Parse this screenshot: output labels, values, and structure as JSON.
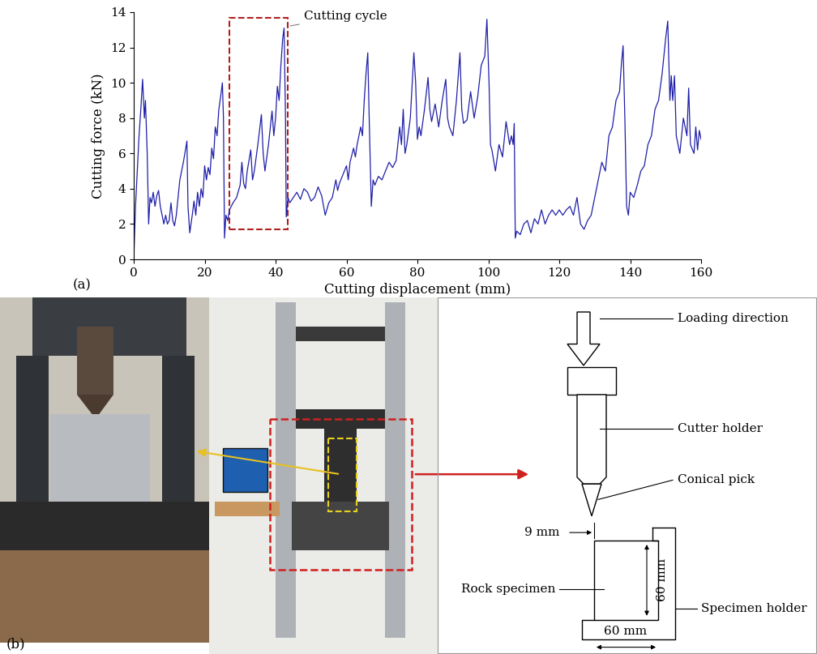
{
  "chart_data": {
    "type": "line",
    "panel_label": "(a)",
    "xlabel": "Cutting displacement (mm)",
    "ylabel": "Cutting force (kN)",
    "xlim": [
      0,
      160
    ],
    "ylim": [
      0,
      14
    ],
    "xticks": [
      0,
      20,
      40,
      60,
      80,
      100,
      120,
      140,
      160
    ],
    "yticks": [
      0,
      2,
      4,
      6,
      8,
      10,
      12,
      14
    ],
    "color": "#1f1fa8",
    "annotations": [
      {
        "text": "Cutting cycle",
        "x": 43.5,
        "y": 13.2,
        "box_x": [
          27,
          43.5
        ],
        "box_y": [
          1.7,
          13.7
        ],
        "color": "#b02020"
      }
    ],
    "x": [
      0,
      0.5,
      1,
      1.5,
      2,
      2.5,
      3,
      3.3,
      3.8,
      4.2,
      4.6,
      5,
      5.5,
      6,
      6.5,
      7,
      7.5,
      8,
      8.5,
      9,
      9.5,
      10,
      10.5,
      11,
      11.5,
      12,
      12.5,
      13,
      14,
      15,
      15.3,
      15.8,
      16.5,
      17,
      17.5,
      18,
      18.5,
      19,
      19.5,
      20,
      20.5,
      21,
      21.5,
      22,
      22.5,
      23,
      23.5,
      24,
      24.5,
      25,
      25.3,
      25.6,
      26,
      26.5,
      27,
      28,
      29,
      30,
      30.5,
      31,
      31.5,
      32,
      33,
      33.5,
      34,
      35,
      36,
      36.5,
      37,
      38,
      39,
      39.5,
      40,
      40.5,
      41,
      41.5,
      42,
      42.4,
      42.8,
      43,
      43.5,
      44,
      45,
      46,
      47,
      48,
      49,
      50,
      51,
      52,
      53,
      54,
      55,
      56,
      57,
      57.5,
      58,
      59,
      60,
      60.5,
      61,
      62,
      62.5,
      63,
      64,
      64.5,
      65,
      65.5,
      66,
      66.4,
      67,
      67.5,
      68,
      69,
      70,
      71,
      72,
      73,
      74,
      75,
      75.5,
      76,
      76.5,
      77,
      78,
      79,
      79.5,
      80,
      80.5,
      81,
      82,
      83,
      83.5,
      84,
      85,
      86,
      87,
      88,
      88.5,
      89,
      90,
      91,
      92,
      92.5,
      93,
      94,
      95,
      96,
      97,
      98,
      99,
      99.6,
      100.2,
      100.6,
      101,
      102,
      103,
      104,
      105,
      106,
      106.5,
      107,
      107.3,
      107.6,
      108,
      109,
      110,
      111,
      112,
      113,
      114,
      115,
      116,
      117,
      118,
      119,
      120,
      121,
      122,
      123,
      124,
      125,
      126,
      127,
      128,
      129,
      130,
      131,
      132,
      133,
      134,
      135,
      136,
      137,
      137.5,
      138,
      138.5,
      139,
      139.5,
      140,
      141,
      142,
      143,
      144,
      145,
      146,
      147,
      148,
      149,
      150,
      150.6,
      151.2,
      151.6,
      152,
      152.5,
      153,
      154,
      155,
      156,
      156.5,
      157,
      158,
      158.5,
      159,
      159.5,
      160
    ],
    "values": [
      0,
      3,
      5,
      7,
      8.5,
      10.2,
      8,
      9,
      6,
      2,
      3.5,
      3.2,
      3.8,
      3,
      3.6,
      3.9,
      3,
      2.5,
      2,
      2.5,
      2,
      2.2,
      3.2,
      2.2,
      1.9,
      2.5,
      3.5,
      4.5,
      5.5,
      6.7,
      3,
      1.5,
      2.5,
      3.3,
      2.5,
      3.8,
      3,
      4,
      3.5,
      5.3,
      4.5,
      5.2,
      4.8,
      6.3,
      5.7,
      7.5,
      7,
      8.5,
      9.2,
      10,
      8,
      1.2,
      2.5,
      2.2,
      2.8,
      3.2,
      3.5,
      4.2,
      5.5,
      4.3,
      4,
      5,
      6.2,
      4.5,
      5,
      6.5,
      8.2,
      6,
      5,
      6.5,
      8.4,
      7,
      8,
      9.8,
      9,
      11,
      12.5,
      13.1,
      8,
      2.4,
      3.5,
      3.2,
      3.5,
      3.8,
      3.4,
      4,
      3.8,
      3.3,
      3.5,
      4.1,
      3.6,
      2.5,
      3.2,
      3.5,
      4.5,
      3.9,
      4.3,
      4.8,
      5.3,
      4.5,
      5.5,
      6.3,
      5.8,
      6.5,
      7.5,
      7,
      9,
      10.5,
      11.7,
      8,
      3,
      4.5,
      4.2,
      4.7,
      4.5,
      5,
      5.5,
      5.2,
      5.6,
      7.5,
      6.5,
      8.5,
      6,
      6.5,
      8,
      11.7,
      10,
      6.8,
      7.5,
      7,
      8.5,
      10.3,
      8.5,
      7.8,
      8.8,
      7.5,
      9,
      10.2,
      8,
      7.5,
      7,
      9,
      11.7,
      8.5,
      7.7,
      7.9,
      9.5,
      8,
      9.2,
      11,
      11.5,
      13.6,
      10,
      6.5,
      6.2,
      5,
      6.5,
      5.8,
      7.8,
      6.5,
      7,
      6.5,
      7.7,
      1.2,
      1.6,
      1.4,
      2,
      2.2,
      1.5,
      2.3,
      2,
      2.8,
      2,
      2.5,
      2.8,
      2.5,
      2.8,
      2.5,
      2.8,
      3,
      2.5,
      3.5,
      2,
      1.7,
      2.2,
      2.5,
      3.5,
      4.5,
      5.5,
      5,
      7,
      7.5,
      9,
      9.5,
      11,
      12.1,
      8,
      3,
      2.5,
      3.8,
      3.5,
      4.2,
      5,
      5.3,
      6.5,
      7,
      8.5,
      9,
      10.5,
      12.5,
      13.5,
      9,
      10.4,
      9,
      10.4,
      7,
      6,
      8,
      7,
      9.7,
      6.5,
      6,
      7.5,
      6.2,
      7.3,
      6.8
    ]
  },
  "diagram": {
    "panel_label": "(b)",
    "loading": "Loading direction",
    "cutter_holder": "Cutter holder",
    "pick": "Conical pick",
    "cut_depth": "9 mm",
    "specimen": "Rock specimen",
    "specimen_height": "60 mm",
    "specimen_width": "60 mm",
    "holder": "Specimen holder"
  }
}
